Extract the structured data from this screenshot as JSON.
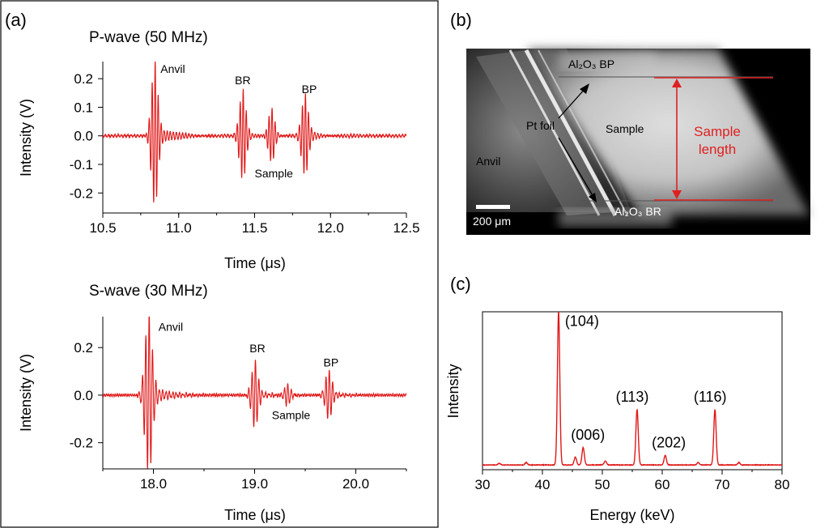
{
  "panels": {
    "a": "(a)",
    "b": "(b)",
    "c": "(c)"
  },
  "colors": {
    "trace": "#e01818",
    "annotation_red": "#e02020"
  },
  "chart_data": [
    {
      "id": "p-wave",
      "type": "line",
      "title": "P-wave (50 MHz)",
      "xlabel": "Time (μs)",
      "ylabel": "Intensity (V)",
      "xlim": [
        10.5,
        12.5
      ],
      "ylim": [
        -0.27,
        0.26
      ],
      "xticks": [
        10.5,
        11.0,
        11.5,
        12.0,
        12.5
      ],
      "xtick_labels": [
        "10.5",
        "11.0",
        "11.5",
        "12.0",
        "12.5"
      ],
      "yticks": [
        0.2,
        0.1,
        0.0,
        -0.1,
        -0.2
      ],
      "ytick_labels": [
        "0.2",
        "0.1",
        "0.0",
        "-0.1",
        "-0.2"
      ],
      "bursts": [
        {
          "t": 10.84,
          "amp": 0.245,
          "width": 0.03,
          "freq": 50
        },
        {
          "t": 11.42,
          "amp": 0.15,
          "width": 0.03,
          "freq": 50
        },
        {
          "t": 11.61,
          "amp": 0.095,
          "width": 0.03,
          "freq": 50
        },
        {
          "t": 11.83,
          "amp": 0.13,
          "width": 0.03,
          "freq": 50
        }
      ],
      "annotations": [
        {
          "text": "Anvil",
          "x": 10.88,
          "y": 0.22
        },
        {
          "text": "BR",
          "x": 11.37,
          "y": 0.18
        },
        {
          "text": "BP",
          "x": 11.81,
          "y": 0.15
        },
        {
          "text": "Sample",
          "x": 11.5,
          "y": -0.145
        }
      ]
    },
    {
      "id": "s-wave",
      "type": "line",
      "title": "S-wave (30 MHz)",
      "xlabel": "Time (μs)",
      "ylabel": "Intensity (V)",
      "xlim": [
        17.5,
        20.5
      ],
      "ylim": [
        -0.31,
        0.33
      ],
      "xticks": [
        18.0,
        19.0,
        20.0
      ],
      "xtick_labels": [
        "18.0",
        "19.0",
        "20.0"
      ],
      "yticks": [
        0.2,
        0.0,
        -0.2
      ],
      "ytick_labels": [
        "0.2",
        "0.0",
        "-0.2"
      ],
      "bursts": [
        {
          "t": 17.95,
          "amp": 0.32,
          "width": 0.05,
          "freq": 30
        },
        {
          "t": 19.0,
          "amp": 0.135,
          "width": 0.045,
          "freq": 30
        },
        {
          "t": 19.32,
          "amp": 0.045,
          "width": 0.045,
          "freq": 30
        },
        {
          "t": 19.73,
          "amp": 0.1,
          "width": 0.045,
          "freq": 30
        }
      ],
      "annotations": [
        {
          "text": "Anvil",
          "x": 18.05,
          "y": 0.27
        },
        {
          "text": "BR",
          "x": 18.95,
          "y": 0.18
        },
        {
          "text": "BP",
          "x": 19.68,
          "y": 0.12
        },
        {
          "text": "Sample",
          "x": 19.17,
          "y": -0.1
        }
      ]
    },
    {
      "id": "xrd",
      "type": "line",
      "title": "",
      "xlabel": "Energy (keV)",
      "ylabel": "Intensity",
      "xlim": [
        30,
        80
      ],
      "ylim": [
        0,
        1.0
      ],
      "xticks": [
        30,
        40,
        50,
        60,
        70,
        80
      ],
      "xtick_labels": [
        "30",
        "40",
        "50",
        "60",
        "70",
        "80"
      ],
      "baseline": 0.03,
      "peaks": [
        {
          "x": 32.8,
          "h": 0.01
        },
        {
          "x": 37.3,
          "h": 0.015
        },
        {
          "x": 42.7,
          "h": 0.97
        },
        {
          "x": 45.5,
          "h": 0.05
        },
        {
          "x": 46.8,
          "h": 0.11
        },
        {
          "x": 50.5,
          "h": 0.025
        },
        {
          "x": 55.8,
          "h": 0.35
        },
        {
          "x": 60.5,
          "h": 0.06
        },
        {
          "x": 66.0,
          "h": 0.015
        },
        {
          "x": 68.8,
          "h": 0.35
        },
        {
          "x": 72.8,
          "h": 0.015
        }
      ],
      "annotations": [
        {
          "text": "(104)",
          "x": 46.6,
          "y": 0.91
        },
        {
          "text": "(006)",
          "x": 47.6,
          "y": 0.19
        },
        {
          "text": "(113)",
          "x": 55.0,
          "y": 0.43
        },
        {
          "text": "(202)",
          "x": 61.1,
          "y": 0.14
        },
        {
          "text": "(116)",
          "x": 68.0,
          "y": 0.43
        }
      ]
    }
  ],
  "micrograph": {
    "labels": {
      "al2o3_bp": "Al₂O₃ BP",
      "al2o3_br": "Al₂O₃ BR",
      "pt_foil": "Pt foil",
      "sample": "Sample",
      "anvil": "Anvil",
      "scale_bar": "200 μm",
      "sample_length_1": "Sample",
      "sample_length_2": "length"
    }
  }
}
